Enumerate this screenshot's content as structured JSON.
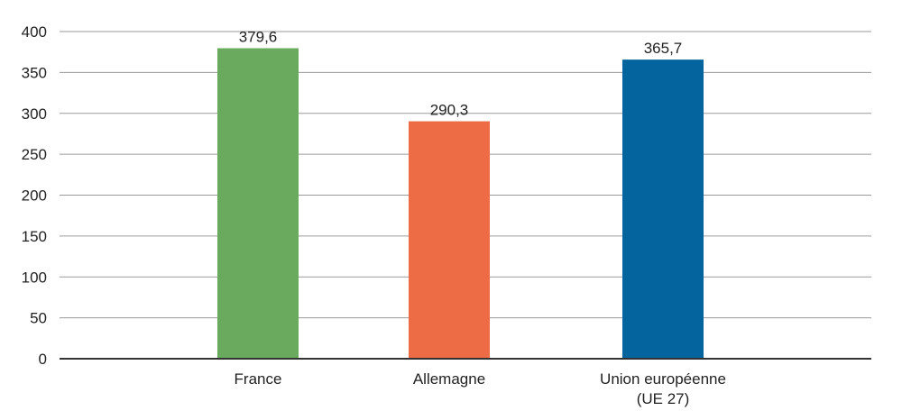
{
  "chart_data": {
    "type": "bar",
    "categories": [
      "France",
      "Allemagne",
      "Union européenne\n(UE 27)"
    ],
    "values": [
      379.6,
      290.3,
      365.7
    ],
    "value_labels": [
      "379,6",
      "290,3",
      "365,7"
    ],
    "colors": [
      "#6aaa5f",
      "#ee6c45",
      "#04649e"
    ],
    "title": "",
    "xlabel": "",
    "ylabel": "",
    "ylim": [
      0,
      400
    ],
    "yticks": [
      0,
      50,
      100,
      150,
      200,
      250,
      300,
      350,
      400
    ],
    "grid": true,
    "legend": "none"
  }
}
